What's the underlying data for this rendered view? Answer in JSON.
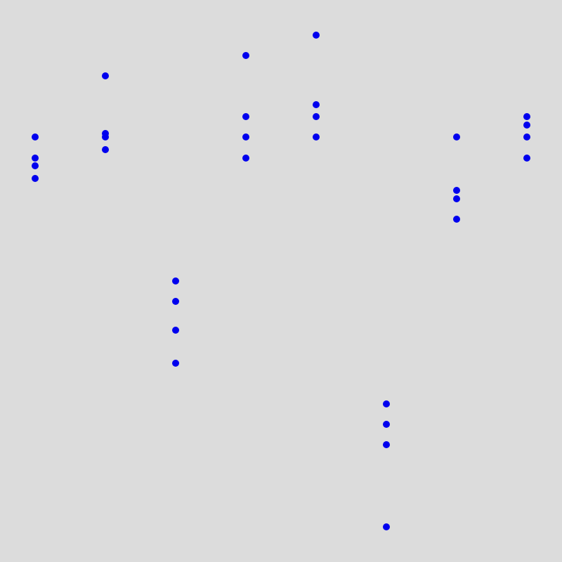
{
  "background_color": "#dcdcdc",
  "point_color": "#0000ee",
  "chart_data": {
    "type": "scatter",
    "title": "",
    "xlabel": "",
    "ylabel": "",
    "grid": false,
    "legend": "none",
    "xlim": [
      0,
      8
    ],
    "ylim": [
      0,
      8
    ],
    "series": [
      {
        "x": [
          0.5,
          0.5,
          0.5,
          0.5,
          1.5,
          1.5,
          1.5,
          1.5,
          2.5,
          2.5,
          2.5,
          2.5,
          3.5,
          3.5,
          3.5,
          3.5,
          4.5,
          4.5,
          4.5,
          4.5,
          5.5,
          5.5,
          5.5,
          5.5,
          6.5,
          6.5,
          6.5,
          6.5,
          7.5,
          7.5,
          7.5,
          7.5
        ],
        "y": [
          6.05,
          5.75,
          5.64,
          5.46,
          6.92,
          6.1,
          6.05,
          5.87,
          4.0,
          3.71,
          3.3,
          2.83,
          7.21,
          6.34,
          6.05,
          5.75,
          7.5,
          6.51,
          6.34,
          6.05,
          2.25,
          1.96,
          1.67,
          0.5,
          6.05,
          5.29,
          5.17,
          4.88,
          6.34,
          6.22,
          6.05,
          5.75
        ]
      }
    ]
  }
}
